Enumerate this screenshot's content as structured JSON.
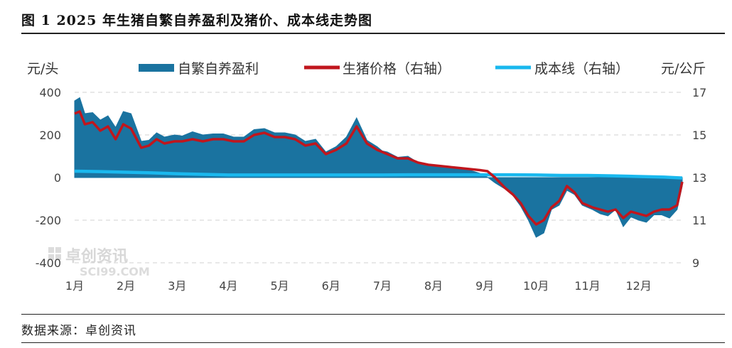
{
  "header": {
    "title": "图 1 2025 年生猪自繁自养盈利及猪价、成本线走势图"
  },
  "footer": {
    "source": "数据来源：卓创资讯"
  },
  "watermark": {
    "brand": "卓创资讯",
    "sub": "SCI99.COM"
  },
  "colors": {
    "profit": "#1a73a0",
    "price": "#c0161d",
    "cost": "#19b8ee",
    "grid": "#d0d0d0"
  },
  "chart_data": {
    "type": "area",
    "y_left": {
      "unit": "元/头",
      "ylim": [
        -400,
        400
      ],
      "ticks": [
        400,
        200,
        0,
        -200,
        -400
      ]
    },
    "y_right": {
      "unit": "元/公斤",
      "ylim": [
        9,
        17
      ],
      "ticks": [
        17,
        15,
        13,
        11,
        9
      ]
    },
    "x_labels": [
      "1月",
      "2月",
      "3月",
      "4月",
      "5月",
      "6月",
      "7月",
      "8月",
      "9月",
      "10月",
      "11月",
      "12月"
    ],
    "grid": "dashed-horizontal",
    "legend_position": "top",
    "series": [
      {
        "name": "自繁自养盈利",
        "axis": "left",
        "style": "area",
        "x": [
          1.0,
          1.1,
          1.2,
          1.35,
          1.5,
          1.65,
          1.8,
          1.95,
          2.1,
          2.3,
          2.45,
          2.6,
          2.75,
          2.95,
          3.1,
          3.3,
          3.5,
          3.7,
          3.9,
          4.1,
          4.3,
          4.5,
          4.7,
          4.9,
          5.1,
          5.3,
          5.5,
          5.7,
          5.9,
          6.1,
          6.3,
          6.5,
          6.7,
          6.9,
          7.0,
          7.1,
          7.3,
          7.5,
          7.7,
          7.9,
          8.1,
          8.3,
          8.5,
          8.7,
          8.9,
          9.05,
          9.2,
          9.4,
          9.55,
          9.7,
          9.85,
          10.0,
          10.15,
          10.3,
          10.45,
          10.6,
          10.75,
          10.9,
          11.0,
          11.1,
          11.25,
          11.4,
          11.55,
          11.7,
          11.85,
          12.0,
          12.15,
          12.3,
          12.45,
          12.6,
          12.75,
          12.85
        ],
        "values": [
          360,
          375,
          300,
          305,
          270,
          290,
          235,
          310,
          300,
          170,
          175,
          210,
          190,
          200,
          195,
          215,
          200,
          205,
          205,
          190,
          190,
          225,
          230,
          210,
          210,
          200,
          170,
          180,
          120,
          145,
          190,
          280,
          175,
          145,
          125,
          120,
          95,
          100,
          70,
          60,
          55,
          50,
          42,
          35,
          20,
          2,
          -25,
          -55,
          -85,
          -135,
          -200,
          -280,
          -260,
          -150,
          -130,
          -60,
          -80,
          -130,
          -140,
          -150,
          -170,
          -180,
          -150,
          -230,
          -185,
          -200,
          -210,
          -175,
          -175,
          -190,
          -150,
          -40
        ]
      },
      {
        "name": "生猪价格（右轴）",
        "axis": "right",
        "style": "line",
        "x": [
          1.0,
          1.1,
          1.2,
          1.35,
          1.5,
          1.65,
          1.8,
          1.95,
          2.1,
          2.3,
          2.45,
          2.6,
          2.75,
          2.95,
          3.1,
          3.3,
          3.5,
          3.7,
          3.9,
          4.1,
          4.3,
          4.5,
          4.7,
          4.9,
          5.1,
          5.3,
          5.5,
          5.7,
          5.9,
          6.1,
          6.3,
          6.5,
          6.7,
          6.9,
          7.0,
          7.1,
          7.3,
          7.5,
          7.7,
          7.9,
          8.1,
          8.3,
          8.5,
          8.7,
          8.9,
          9.05,
          9.2,
          9.4,
          9.55,
          9.7,
          9.85,
          10.0,
          10.15,
          10.3,
          10.45,
          10.6,
          10.75,
          10.9,
          11.0,
          11.1,
          11.25,
          11.4,
          11.55,
          11.7,
          11.85,
          12.0,
          12.15,
          12.3,
          12.45,
          12.6,
          12.75,
          12.85
        ],
        "values": [
          16.0,
          16.1,
          15.5,
          15.6,
          15.2,
          15.4,
          14.8,
          15.5,
          15.3,
          14.4,
          14.5,
          14.8,
          14.6,
          14.7,
          14.7,
          14.8,
          14.7,
          14.8,
          14.8,
          14.7,
          14.7,
          15.0,
          15.1,
          14.9,
          14.9,
          14.8,
          14.5,
          14.6,
          14.1,
          14.3,
          14.6,
          15.4,
          14.6,
          14.3,
          14.2,
          14.1,
          13.9,
          13.9,
          13.7,
          13.6,
          13.55,
          13.5,
          13.45,
          13.4,
          13.35,
          13.3,
          13.0,
          12.5,
          12.2,
          11.8,
          11.2,
          10.8,
          11.0,
          11.6,
          11.9,
          12.6,
          12.3,
          11.8,
          11.7,
          11.6,
          11.5,
          11.4,
          11.5,
          11.1,
          11.4,
          11.3,
          11.2,
          11.4,
          11.5,
          11.5,
          11.7,
          12.8
        ]
      },
      {
        "name": "成本线（右轴）",
        "axis": "right",
        "style": "line",
        "x": [
          1.0,
          1.5,
          2.0,
          2.5,
          3.0,
          3.5,
          4.0,
          4.5,
          5.0,
          5.5,
          6.0,
          6.5,
          7.0,
          7.5,
          8.0,
          8.5,
          9.0,
          9.5,
          10.0,
          10.5,
          11.0,
          11.5,
          12.0,
          12.5,
          12.85
        ],
        "values": [
          13.3,
          13.28,
          13.25,
          13.22,
          13.18,
          13.15,
          13.12,
          13.12,
          13.12,
          13.12,
          13.12,
          13.12,
          13.12,
          13.13,
          13.13,
          13.13,
          13.13,
          13.13,
          13.12,
          13.1,
          13.1,
          13.08,
          13.05,
          13.02,
          12.98
        ]
      }
    ]
  }
}
